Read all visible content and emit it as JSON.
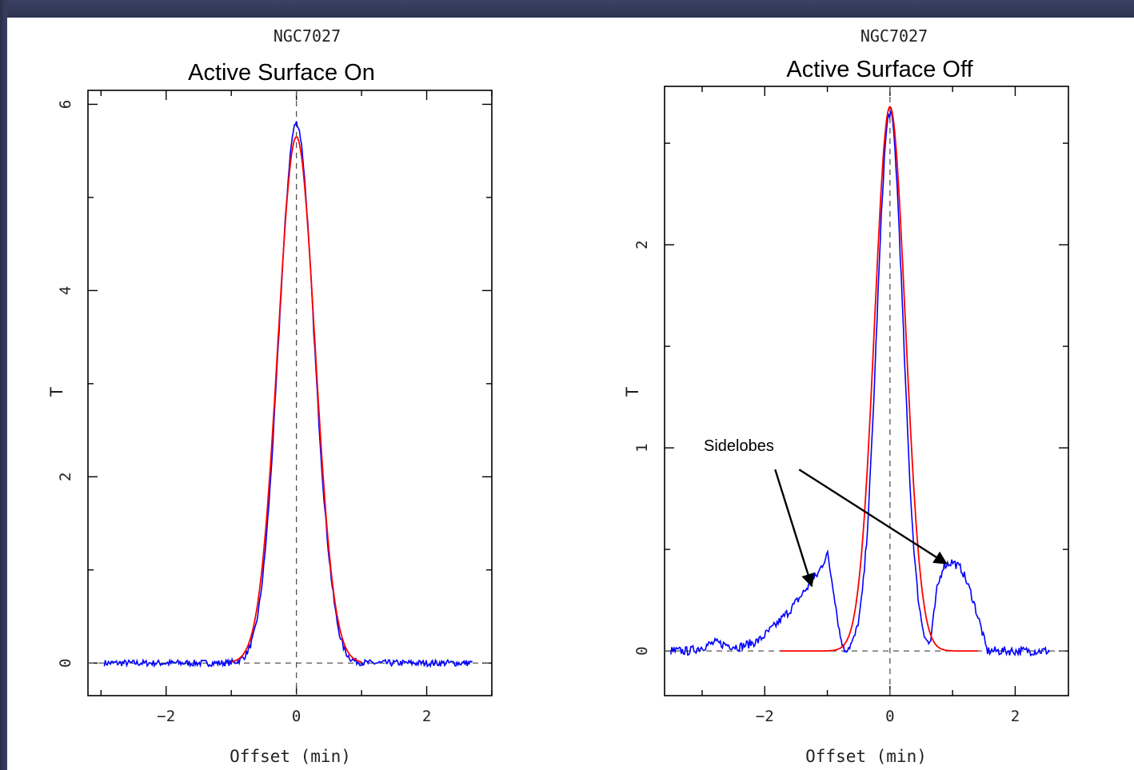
{
  "colors": {
    "data": "#0000ff",
    "fit": "#ff0000",
    "frame": "#2e3452"
  },
  "chart_data": [
    {
      "type": "line",
      "subtitle": "NGC7027",
      "title": "Active Surface On",
      "xlabel": "Offset (min)",
      "ylabel": "T",
      "xlim": [
        -3.2,
        3.0
      ],
      "ylim": [
        -0.35,
        6.15
      ],
      "xticks": [
        -2,
        0,
        2
      ],
      "xtick_labels": [
        "−2",
        "0",
        "2"
      ],
      "yticks": [
        0,
        2,
        4,
        6
      ],
      "ytick_labels": [
        "0",
        "2",
        "4",
        "6"
      ],
      "series": [
        {
          "role": "data",
          "color": "#0000ff",
          "peak": 5.8,
          "sigma": 0.27,
          "x_range": [
            -2.95,
            2.7
          ],
          "noise": 0.035,
          "bumps": [
            [
              0.5,
              0.35,
              0.1
            ]
          ]
        },
        {
          "role": "fit",
          "color": "#ff0000",
          "peak": 5.65,
          "sigma": 0.285,
          "x_range": [
            -1.0,
            1.0
          ]
        }
      ]
    },
    {
      "type": "line",
      "subtitle": "NGC7027",
      "title": "Active Surface Off",
      "xlabel": "Offset (min)",
      "ylabel": "T",
      "xlim": [
        -3.6,
        2.85
      ],
      "ylim": [
        -0.22,
        2.78
      ],
      "xticks": [
        -2,
        0,
        2
      ],
      "xtick_labels": [
        "−2",
        "0",
        "2"
      ],
      "yticks": [
        0,
        1,
        2
      ],
      "ytick_labels": [
        "0",
        "1",
        "2"
      ],
      "annotations": [
        {
          "text": "Sidelobes",
          "x": -2.6,
          "y": 0.98,
          "arrows_to": [
            [
              -1.25,
              0.32
            ],
            [
              0.9,
              0.43
            ]
          ]
        }
      ],
      "series": [
        {
          "role": "data",
          "color": "#0000ff",
          "peak": 2.65,
          "sigma": 0.21,
          "x_range": [
            -3.5,
            2.55
          ],
          "noise": 0.022,
          "sidelobes": [
            {
              "points": [
                [
                  -3.5,
                  -0.03
                ],
                [
                  -2.8,
                  0.04
                ],
                [
                  -2.4,
                  0.02
                ],
                [
                  -2.1,
                  0.05
                ],
                [
                  -1.85,
                  0.12
                ],
                [
                  -1.6,
                  0.2
                ],
                [
                  -1.35,
                  0.3
                ],
                [
                  -1.15,
                  0.38
                ],
                [
                  -1.0,
                  0.48
                ],
                [
                  -0.9,
                  0.3
                ],
                [
                  -0.8,
                  0.08
                ],
                [
                  -0.72,
                  -0.01
                ],
                [
                  -0.6,
                  0.0
                ]
              ]
            },
            {
              "points": [
                [
                  0.55,
                  0.0
                ],
                [
                  0.65,
                  0.05
                ],
                [
                  0.75,
                  0.3
                ],
                [
                  0.85,
                  0.42
                ],
                [
                  1.0,
                  0.44
                ],
                [
                  1.15,
                  0.4
                ],
                [
                  1.3,
                  0.28
                ],
                [
                  1.45,
                  0.12
                ],
                [
                  1.55,
                  0.0
                ],
                [
                  1.65,
                  -0.06
                ],
                [
                  2.0,
                  -0.02
                ],
                [
                  2.4,
                  0.0
                ],
                [
                  2.55,
                  -0.05
                ]
              ]
            }
          ]
        },
        {
          "role": "fit",
          "color": "#ff0000",
          "peak": 2.68,
          "sigma": 0.245,
          "x_range": [
            -1.75,
            1.4
          ]
        }
      ]
    }
  ]
}
